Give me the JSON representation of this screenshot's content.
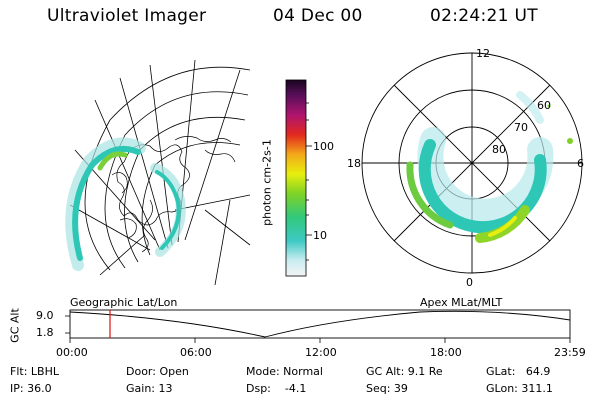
{
  "header": {
    "instrument": "Ultraviolet Imager",
    "date": "04 Dec 00",
    "time": "02:24:21 UT"
  },
  "colorbar": {
    "unit_label": "photon cm-2s-1",
    "ticks": [
      "100",
      "10"
    ]
  },
  "polar_plot": {
    "lat_labels": [
      "60",
      "70",
      "80"
    ],
    "mlt_labels": [
      "12",
      "18",
      "6",
      "0"
    ]
  },
  "timeline": {
    "left_title": "Geographic Lat/Lon",
    "right_title": "Apex MLat/MLT",
    "ylabel": "GC Alt",
    "y_ticks": [
      "9.0",
      "1.8"
    ],
    "x_ticks": [
      "00:00",
      "06:00",
      "12:00",
      "18:00",
      "23:59"
    ]
  },
  "info": {
    "filter": "Flt: LBHL",
    "ip": "IP: 36.0",
    "door": "Door: Open",
    "gain": "Gain: 13",
    "mode": "Mode: Normal",
    "dsp": "Dsp:    -4.1",
    "gc_alt": "GC Alt: 9.1 Re",
    "seq": "Seq: 39",
    "glat": "GLat:   64.9",
    "glon": "GLon: 311.1"
  }
}
